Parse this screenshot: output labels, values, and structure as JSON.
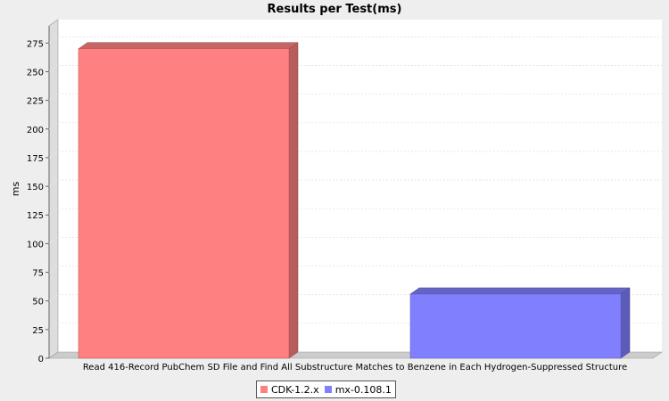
{
  "chart_data": {
    "type": "bar",
    "title": "Results per Test(ms)",
    "xlabel": "",
    "ylabel": "ms",
    "categories": [
      "Read 416-Record PubChem SD File and Find All Substructure Matches to Benzene in Each Hydrogen-Suppressed Structure"
    ],
    "series": [
      {
        "name": "CDK-1.2.x",
        "values": [
          270
        ],
        "color": "#ff8080"
      },
      {
        "name": "mx-0.108.1",
        "values": [
          56
        ],
        "color": "#8080ff"
      }
    ],
    "ylim": [
      0,
      290
    ],
    "yticks": [
      0,
      25,
      50,
      75,
      100,
      125,
      150,
      175,
      200,
      225,
      250,
      275
    ],
    "grid": true,
    "legend": "bottom-center",
    "style": "3d"
  }
}
